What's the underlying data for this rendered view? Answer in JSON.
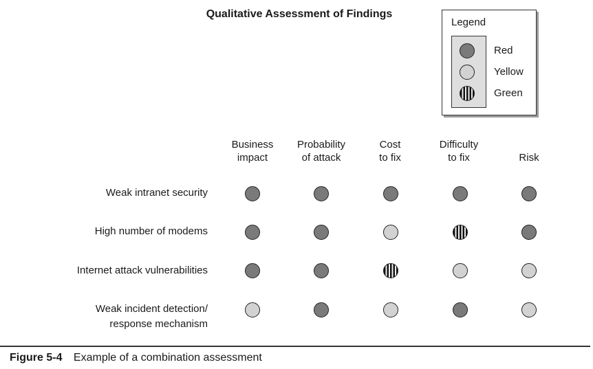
{
  "title": "Qualitative Assessment of Findings",
  "legend": {
    "title": "Legend",
    "items": [
      {
        "label": "Red",
        "style": "red"
      },
      {
        "label": "Yellow",
        "style": "yellow"
      },
      {
        "label": "Green",
        "style": "green"
      }
    ]
  },
  "columns": [
    {
      "line1": "Business",
      "line2": "impact"
    },
    {
      "line1": "Probability",
      "line2": "of attack"
    },
    {
      "line1": "Cost",
      "line2": "to fix"
    },
    {
      "line1": "Difficulty",
      "line2": "to fix"
    },
    {
      "line1": "",
      "line2": "Risk"
    }
  ],
  "rows": [
    {
      "label1": "Weak intranet security",
      "label2": "",
      "ratings": [
        "red",
        "red",
        "red",
        "red",
        "red"
      ]
    },
    {
      "label1": "High number of modems",
      "label2": "",
      "ratings": [
        "red",
        "red",
        "yellow",
        "green",
        "red"
      ]
    },
    {
      "label1": "Internet attack vulnerabilities",
      "label2": "",
      "ratings": [
        "red",
        "red",
        "green",
        "yellow",
        "yellow"
      ]
    },
    {
      "label1": "Weak incident detection/",
      "label2": "response mechanism",
      "ratings": [
        "yellow",
        "red",
        "yellow",
        "red",
        "yellow"
      ]
    }
  ],
  "caption": {
    "figure": "Figure 5-4",
    "text": "Example of a combination assessment"
  },
  "colors": {
    "red": "#7a7a7a",
    "yellow": "#d2d2d2",
    "green_stripe": "#111111"
  }
}
